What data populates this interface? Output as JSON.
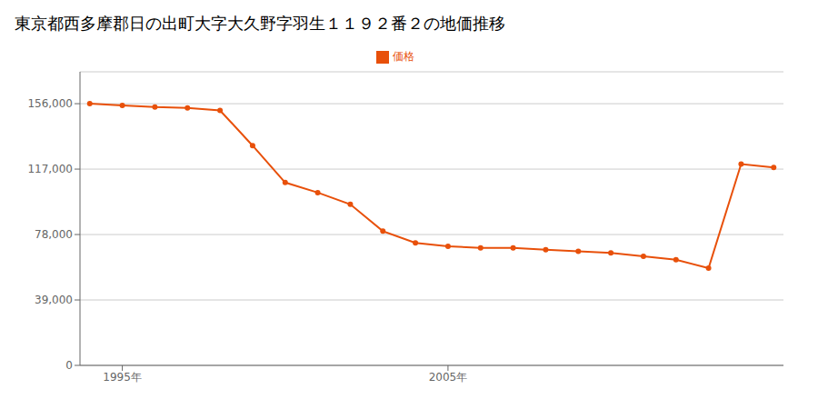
{
  "chart_data": {
    "type": "line",
    "title": "東京都西多摩郡日の出町大字大久野字羽生１１９２番２の地価推移",
    "x": [
      1994,
      1995,
      1996,
      1997,
      1998,
      1999,
      2000,
      2001,
      2002,
      2003,
      2004,
      2005,
      2006,
      2007,
      2008,
      2009,
      2010,
      2011,
      2012,
      2013,
      2014,
      2015
    ],
    "series": [
      {
        "name": "価格",
        "color": "#E8500A",
        "values": [
          156000,
          155000,
          154000,
          153500,
          152000,
          131000,
          109000,
          103000,
          96000,
          80000,
          73000,
          71000,
          70000,
          70000,
          69000,
          68000,
          67000,
          65000,
          63000,
          58000,
          120000,
          118000
        ]
      }
    ],
    "xlim": [
      1993.7,
      2015.3
    ],
    "xticks": [
      {
        "value": 1995,
        "label": "1995年"
      },
      {
        "value": 2005,
        "label": "2005年"
      }
    ],
    "ylim": [
      0,
      175000
    ],
    "yticks": [
      0,
      {
        "value": 39000,
        "label": "39,000"
      },
      {
        "value": 78000,
        "label": "78,000"
      },
      {
        "value": 117000,
        "label": "117,000"
      },
      {
        "value": 156000,
        "label": "156,000"
      }
    ],
    "grid": "y",
    "marker": "circle",
    "legend": "top"
  }
}
